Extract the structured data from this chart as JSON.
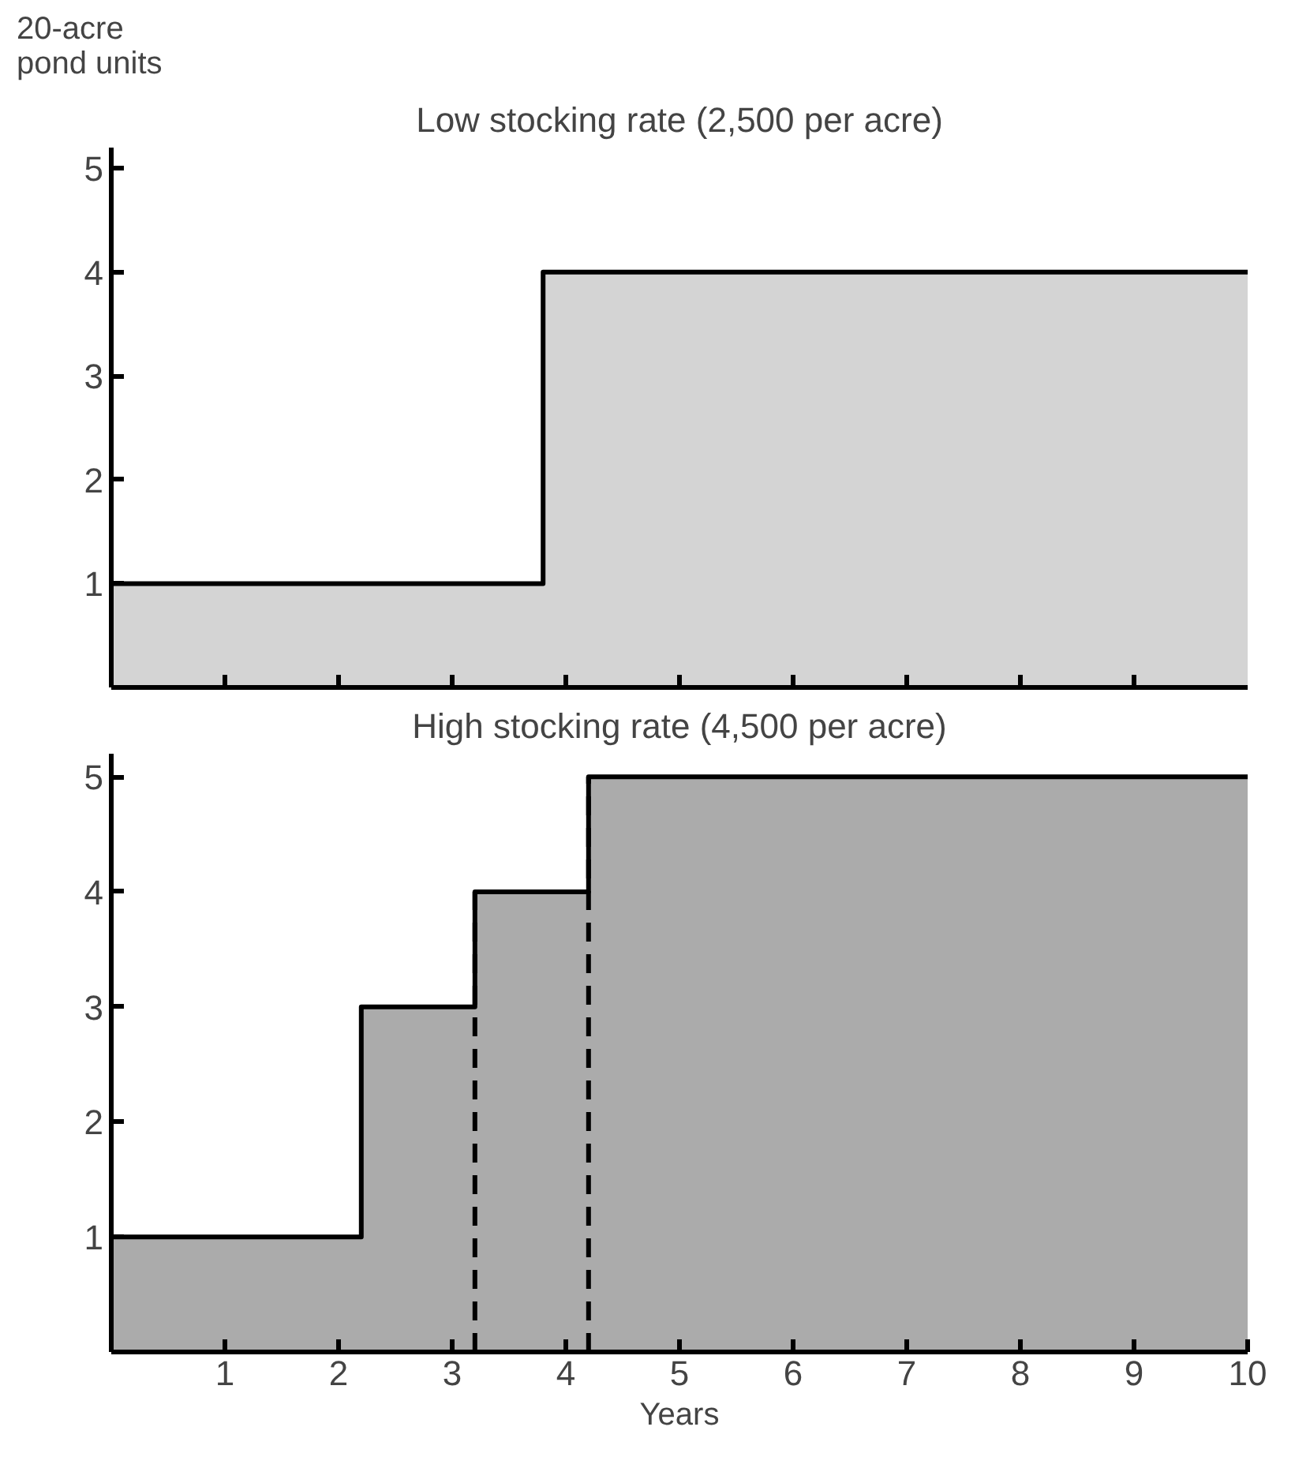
{
  "chart_data": [
    {
      "type": "area",
      "title": "Low stocking rate (2,500 per acre)",
      "ylabel": "20-acre\npond units",
      "series": [
        {
          "color": "#d4d4d4",
          "x": [
            0,
            3.8,
            3.8,
            10
          ],
          "values": [
            1,
            1,
            4,
            4
          ]
        }
      ],
      "xlim": [
        0,
        10
      ],
      "ylim": [
        0,
        5.2
      ],
      "xticks": [
        {
          "value": 1,
          "label": null
        },
        {
          "value": 2,
          "label": null
        },
        {
          "value": 3,
          "label": null
        },
        {
          "value": 4,
          "label": null
        },
        {
          "value": 5,
          "label": null
        },
        {
          "value": 6,
          "label": null
        },
        {
          "value": 7,
          "label": null
        },
        {
          "value": 8,
          "label": null
        },
        {
          "value": 9,
          "label": null
        }
      ],
      "yticks": [
        1,
        2,
        3,
        4,
        5
      ],
      "tick_labels": "y"
    },
    {
      "type": "area",
      "title": "High stocking rate (4,500 per acre)",
      "xlabel": "Years",
      "series": [
        {
          "color": "#ababab",
          "x": [
            0,
            2.2,
            2.2,
            3.2,
            3.2,
            4.2,
            4.2,
            10
          ],
          "values": [
            1,
            1,
            3,
            3,
            4,
            4,
            5,
            5
          ]
        }
      ],
      "xlim": [
        0,
        10
      ],
      "ylim": [
        0,
        5.2
      ],
      "xticks": [
        1,
        2,
        3,
        4,
        5,
        6,
        7,
        8,
        9,
        10
      ],
      "yticks": [
        1,
        2,
        3,
        4,
        5
      ],
      "ref_lines": [
        {
          "axis": "x",
          "value": 3.2,
          "line_style": "dashed"
        },
        {
          "axis": "x",
          "value": 4.2,
          "line_style": "dashed"
        }
      ]
    }
  ]
}
